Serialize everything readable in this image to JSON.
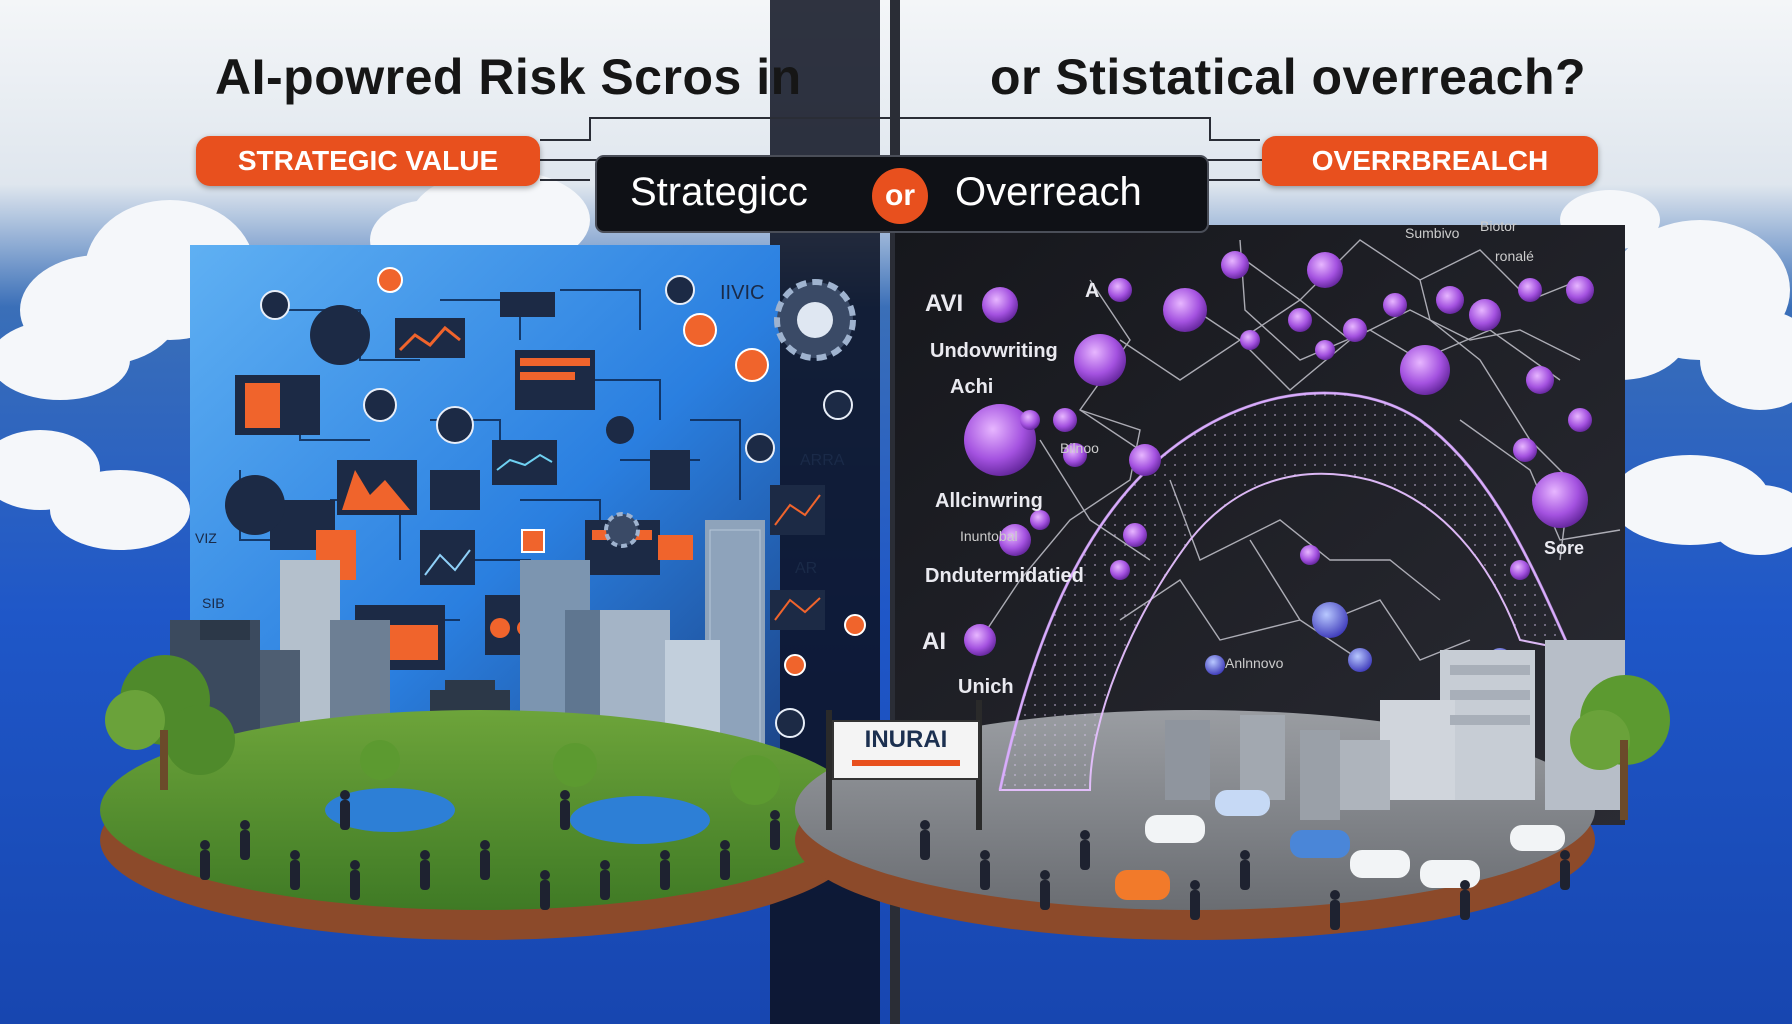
{
  "title": {
    "left": "AI-powred Risk Scros in",
    "right": "or Stistatical overreach?"
  },
  "badges": {
    "left": "STRATEGIC VALUE",
    "right": "OVERRBREALCH"
  },
  "center_box": {
    "left_word": "Strategicc",
    "or": "or",
    "right_word": "Overreach"
  },
  "sign": "INURAI",
  "left_labels": [
    "IIVIC",
    "ARRA",
    "AR",
    "VIZ",
    "SIB"
  ],
  "right_labels": {
    "avi": "AVI",
    "a": "A",
    "underwriting": "Undovwriting",
    "achi": "Achi",
    "allcinwring": "Allcinwring",
    "undetermined": "Dndutermidatied",
    "ai": "AI",
    "unich": "Unich",
    "sore": "Sore",
    "sub1": "Sumbivo",
    "sub2": "Biotor",
    "sub3": "ronalé",
    "anon": "Anlnnovo",
    "bioo": "Bilnoo",
    "inun": "Inuntobal"
  },
  "colors": {
    "accent": "#e8501e",
    "node_purple": "#9b4fd8",
    "left_panel": "#2f86e6",
    "right_panel": "#1a1b22"
  }
}
